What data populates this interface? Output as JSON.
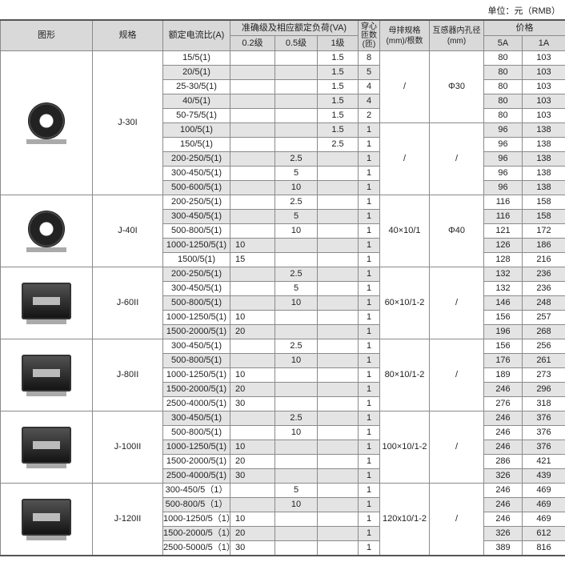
{
  "unit": "单位：元（RMB）",
  "headers": {
    "figure": "图形",
    "model": "规格",
    "ratio": "额定电流比(A)",
    "accuracy": "准确级及相应额定负荷(VA)",
    "c02": "0.2级",
    "c05": "0.5级",
    "c1": "1级",
    "turns": "穿心匝数(匝)",
    "busbar": "母排规格(mm)/根数",
    "bore": "互感器内孔径(mm)",
    "price": "价格",
    "p5": "5A",
    "p1": "1A"
  },
  "groups": [
    {
      "model": "J-30I",
      "shape": "round",
      "busbar": [
        "/",
        "/"
      ],
      "bore": [
        "Φ30",
        "/"
      ],
      "split": 5,
      "rows": [
        [
          "15/5(1)",
          "",
          "",
          "1.5",
          "8",
          "80",
          "103"
        ],
        [
          "20/5(1)",
          "",
          "",
          "1.5",
          "5",
          "80",
          "103"
        ],
        [
          "25-30/5(1)",
          "",
          "",
          "1.5",
          "4",
          "80",
          "103"
        ],
        [
          "40/5(1)",
          "",
          "",
          "1.5",
          "4",
          "80",
          "103"
        ],
        [
          "50-75/5(1)",
          "",
          "",
          "1.5",
          "2",
          "80",
          "103"
        ],
        [
          "100/5(1)",
          "",
          "",
          "1.5",
          "1",
          "96",
          "138"
        ],
        [
          "150/5(1)",
          "",
          "",
          "2.5",
          "1",
          "96",
          "138"
        ],
        [
          "200-250/5(1)",
          "",
          "2.5",
          "",
          "1",
          "96",
          "138"
        ],
        [
          "300-450/5(1)",
          "",
          "5",
          "",
          "1",
          "96",
          "138"
        ],
        [
          "500-600/5(1)",
          "",
          "10",
          "",
          "1",
          "96",
          "138"
        ]
      ]
    },
    {
      "model": "J-40I",
      "shape": "round",
      "busbar": [
        "40×10/1"
      ],
      "bore": [
        "Φ40"
      ],
      "rows": [
        [
          "200-250/5(1)",
          "",
          "2.5",
          "",
          "1",
          "116",
          "158"
        ],
        [
          "300-450/5(1)",
          "",
          "5",
          "",
          "1",
          "116",
          "158"
        ],
        [
          "500-800/5(1)",
          "",
          "10",
          "",
          "1",
          "121",
          "172"
        ],
        [
          "1000-1250/5(1)",
          "10",
          "",
          "",
          "1",
          "126",
          "186"
        ],
        [
          "1500/5(1)",
          "15",
          "",
          "",
          "1",
          "128",
          "216"
        ]
      ]
    },
    {
      "model": "J-60II",
      "shape": "box",
      "busbar": [
        "60×10/1-2"
      ],
      "bore": [
        "/"
      ],
      "rows": [
        [
          "200-250/5(1)",
          "",
          "2.5",
          "",
          "1",
          "132",
          "236"
        ],
        [
          "300-450/5(1)",
          "",
          "5",
          "",
          "1",
          "132",
          "236"
        ],
        [
          "500-800/5(1)",
          "",
          "10",
          "",
          "1",
          "146",
          "248"
        ],
        [
          "1000-1250/5(1)",
          "10",
          "",
          "",
          "1",
          "156",
          "257"
        ],
        [
          "1500-2000/5(1)",
          "20",
          "",
          "",
          "1",
          "196",
          "268"
        ]
      ]
    },
    {
      "model": "J-80II",
      "shape": "box",
      "busbar": [
        "80×10/1-2"
      ],
      "bore": [
        "/"
      ],
      "rows": [
        [
          "300-450/5(1)",
          "",
          "2.5",
          "",
          "1",
          "156",
          "256"
        ],
        [
          "500-800/5(1)",
          "",
          "10",
          "",
          "1",
          "176",
          "261"
        ],
        [
          "1000-1250/5(1)",
          "10",
          "",
          "",
          "1",
          "189",
          "273"
        ],
        [
          "1500-2000/5(1)",
          "20",
          "",
          "",
          "1",
          "246",
          "296"
        ],
        [
          "2500-4000/5(1)",
          "30",
          "",
          "",
          "1",
          "276",
          "318"
        ]
      ]
    },
    {
      "model": "J-100II",
      "shape": "box",
      "busbar": [
        "100×10/1-2"
      ],
      "bore": [
        "/"
      ],
      "rows": [
        [
          "300-450/5(1)",
          "",
          "2.5",
          "",
          "1",
          "246",
          "376"
        ],
        [
          "500-800/5(1)",
          "",
          "10",
          "",
          "1",
          "246",
          "376"
        ],
        [
          "1000-1250/5(1)",
          "10",
          "",
          "",
          "1",
          "246",
          "376"
        ],
        [
          "1500-2000/5(1)",
          "20",
          "",
          "",
          "1",
          "286",
          "421"
        ],
        [
          "2500-4000/5(1)",
          "30",
          "",
          "",
          "1",
          "326",
          "439"
        ]
      ]
    },
    {
      "model": "J-120II",
      "shape": "box",
      "busbar": [
        "120x10/1-2"
      ],
      "bore": [
        "/"
      ],
      "rows": [
        [
          "300-450/5（1）",
          "",
          "5",
          "",
          "1",
          "246",
          "469"
        ],
        [
          "500-800/5（1）",
          "",
          "10",
          "",
          "1",
          "246",
          "469"
        ],
        [
          "1000-1250/5（1）",
          "10",
          "",
          "",
          "1",
          "246",
          "469"
        ],
        [
          "1500-2000/5（1）",
          "20",
          "",
          "",
          "1",
          "326",
          "612"
        ],
        [
          "2500-5000/5（1）",
          "30",
          "",
          "",
          "1",
          "389",
          "816"
        ]
      ]
    }
  ]
}
